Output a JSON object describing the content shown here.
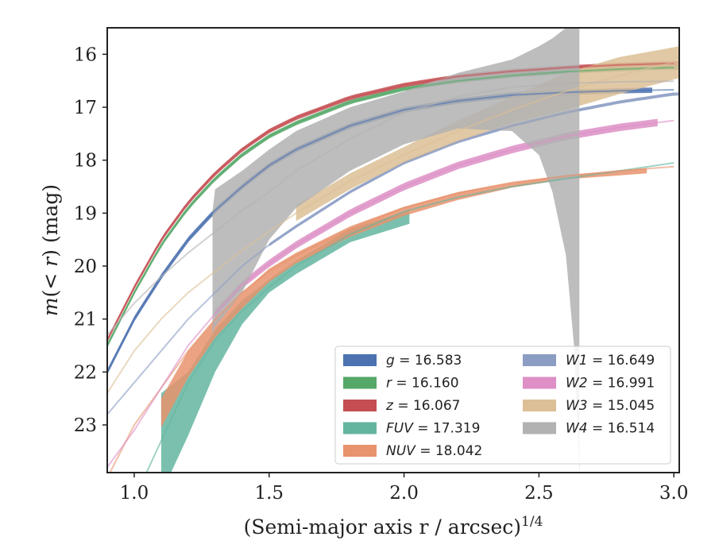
{
  "chart_data": {
    "type": "line",
    "xlabel": "(Semi-major axis r / arcsec)",
    "xlabel_sup": "1/4",
    "ylabel_parts": [
      "m",
      "(< ",
      "r",
      ") (mag)"
    ],
    "xlim": [
      0.9,
      3.02
    ],
    "ylim": [
      23.9,
      15.5
    ],
    "y_inverted": true,
    "xticks": [
      1.0,
      1.5,
      2.0,
      2.5,
      3.0
    ],
    "xtick_labels": [
      "1.0",
      "1.5",
      "2.0",
      "2.5",
      "3.0"
    ],
    "yticks": [
      16,
      17,
      18,
      19,
      20,
      21,
      22,
      23
    ],
    "ytick_labels": [
      "16",
      "17",
      "18",
      "19",
      "20",
      "21",
      "22",
      "23"
    ],
    "grid": false,
    "legend_position": "lower-right",
    "legend_columns": 2,
    "series": [
      {
        "name": "g",
        "legend_value": "16.583",
        "color": "#4c72b0",
        "x": [
          0.9,
          1.0,
          1.1,
          1.2,
          1.3,
          1.4,
          1.5,
          1.6,
          1.8,
          2.0,
          2.2,
          2.4,
          2.6,
          2.8,
          3.0
        ],
        "y": [
          22.0,
          21.0,
          20.2,
          19.5,
          18.95,
          18.5,
          18.1,
          17.8,
          17.35,
          17.05,
          16.88,
          16.77,
          16.72,
          16.69,
          16.67
        ],
        "band_x": [
          0.9,
          2.92
        ],
        "lower": 0.05,
        "upper": 0.05
      },
      {
        "name": "r",
        "legend_value": "16.160",
        "color": "#55a868",
        "x": [
          0.9,
          1.0,
          1.1,
          1.2,
          1.3,
          1.4,
          1.5,
          1.6,
          1.8,
          2.0,
          2.2,
          2.4,
          2.6,
          2.8,
          3.0
        ],
        "y": [
          21.5,
          20.5,
          19.6,
          18.9,
          18.35,
          17.9,
          17.55,
          17.3,
          16.9,
          16.65,
          16.5,
          16.4,
          16.33,
          16.28,
          16.25
        ],
        "band_x": [
          0.9,
          3.02
        ],
        "lower": 0.04,
        "upper": 0.04
      },
      {
        "name": "z",
        "legend_value": "16.067",
        "color": "#c44e52",
        "x": [
          0.9,
          1.0,
          1.1,
          1.2,
          1.3,
          1.4,
          1.5,
          1.6,
          1.8,
          2.0,
          2.2,
          2.4,
          2.6,
          2.8,
          3.0
        ],
        "y": [
          21.4,
          20.4,
          19.5,
          18.8,
          18.25,
          17.8,
          17.45,
          17.2,
          16.82,
          16.58,
          16.42,
          16.32,
          16.25,
          16.2,
          16.17
        ],
        "band_x": [
          0.9,
          3.02
        ],
        "lower": 0.04,
        "upper": 0.04
      },
      {
        "name": "FUV",
        "legend_value": "17.319",
        "color": "#64b5a0",
        "x": [
          0.9,
          1.0,
          1.1,
          1.2,
          1.3,
          1.4,
          1.5,
          1.6,
          1.8,
          2.0,
          2.2,
          2.4,
          2.6,
          2.8,
          3.0
        ],
        "y": [
          25.5,
          24.4,
          23.3,
          22.2,
          21.4,
          20.85,
          20.4,
          20.0,
          19.4,
          18.97,
          18.7,
          18.5,
          18.35,
          18.2,
          18.05
        ],
        "band_x": [
          1.1,
          2.02
        ],
        "band_xs": [
          1.1,
          1.2,
          1.3,
          1.4,
          1.5,
          1.6,
          1.8,
          2.02
        ],
        "band_upper": [
          22.4,
          22.0,
          21.2,
          20.65,
          20.25,
          19.9,
          19.3,
          18.95
        ],
        "band_lower": [
          24.3,
          23.2,
          22.0,
          21.1,
          20.5,
          20.15,
          19.55,
          19.2
        ]
      },
      {
        "name": "NUV",
        "legend_value": "18.042",
        "color": "#e8936d",
        "x": [
          0.9,
          1.0,
          1.1,
          1.2,
          1.3,
          1.4,
          1.5,
          1.6,
          1.8,
          2.0,
          2.2,
          2.4,
          2.6,
          2.8,
          3.0
        ],
        "y": [
          24.0,
          23.0,
          22.3,
          21.6,
          21.0,
          20.5,
          20.1,
          19.8,
          19.3,
          18.9,
          18.62,
          18.42,
          18.3,
          18.2,
          18.12
        ],
        "band_x": [
          1.1,
          2.9
        ],
        "band_xs": [
          1.1,
          1.2,
          1.3,
          1.4,
          1.5,
          1.6,
          1.8,
          2.0,
          2.2,
          2.4,
          2.6,
          2.9
        ],
        "band_upper": [
          22.5,
          21.6,
          21.0,
          20.5,
          20.05,
          19.75,
          19.25,
          18.88,
          18.6,
          18.42,
          18.28,
          18.15
        ],
        "band_lower": [
          23.05,
          22.1,
          21.35,
          20.8,
          20.3,
          19.95,
          19.45,
          19.05,
          18.75,
          18.52,
          18.36,
          18.25
        ]
      },
      {
        "name": "W1",
        "legend_value": "16.649",
        "color": "#8c9dc4",
        "x": [
          0.9,
          1.0,
          1.1,
          1.2,
          1.3,
          1.4,
          1.5,
          1.6,
          1.8,
          2.0,
          2.2,
          2.4,
          2.6,
          2.8,
          3.0
        ],
        "y": [
          22.8,
          22.2,
          21.6,
          21.0,
          20.5,
          20.0,
          19.6,
          19.25,
          18.6,
          18.05,
          17.65,
          17.35,
          17.1,
          16.9,
          16.75
        ],
        "band_x": [
          1.5,
          3.02
        ],
        "lower": 0.03,
        "upper": 0.03
      },
      {
        "name": "W2",
        "legend_value": "16.991",
        "color": "#dd8fc6",
        "x": [
          0.9,
          1.0,
          1.1,
          1.2,
          1.3,
          1.4,
          1.5,
          1.6,
          1.8,
          2.0,
          2.2,
          2.4,
          2.6,
          2.8,
          3.0
        ],
        "y": [
          23.8,
          23.1,
          22.3,
          21.5,
          20.9,
          20.35,
          19.95,
          19.6,
          19.0,
          18.5,
          18.1,
          17.8,
          17.55,
          17.38,
          17.25
        ],
        "band_x": [
          1.3,
          2.94
        ],
        "lower": 0.07,
        "upper": 0.07
      },
      {
        "name": "W3",
        "legend_value": "15.045",
        "color": "#dcbf96",
        "x": [
          0.9,
          1.0,
          1.1,
          1.2,
          1.3,
          1.4,
          1.5,
          1.6,
          1.8,
          2.0,
          2.2,
          2.4,
          2.6,
          2.8,
          3.0
        ],
        "y": [
          22.4,
          21.6,
          21.0,
          20.5,
          20.1,
          19.7,
          19.35,
          19.0,
          18.4,
          17.9,
          17.45,
          17.05,
          16.7,
          16.4,
          16.15
        ],
        "band_x": [
          1.6,
          3.02
        ],
        "band_xs": [
          1.6,
          1.8,
          2.0,
          2.2,
          2.4,
          2.6,
          2.8,
          3.02
        ],
        "band_upper": [
          18.85,
          18.25,
          17.75,
          17.25,
          16.8,
          16.35,
          16.05,
          15.85
        ],
        "band_lower": [
          19.15,
          18.55,
          18.05,
          17.65,
          17.3,
          17.05,
          16.75,
          16.45
        ]
      },
      {
        "name": "W4",
        "legend_value": "16.514",
        "color": "#b2b2b2",
        "x": [
          0.9,
          1.0,
          1.1,
          1.2,
          1.3,
          1.4,
          1.5,
          1.6,
          1.8,
          2.0,
          2.2,
          2.4,
          2.6,
          2.8,
          3.0
        ],
        "y": [
          21.3,
          20.7,
          20.2,
          19.75,
          19.35,
          18.95,
          18.6,
          18.2,
          17.6,
          17.1,
          16.8,
          16.62,
          16.55,
          16.52,
          16.51
        ],
        "band_x": [
          1.29,
          2.65
        ],
        "band_xs": [
          1.29,
          1.3,
          1.4,
          1.5,
          1.6,
          1.8,
          2.0,
          2.2,
          2.4,
          2.5,
          2.55,
          2.6,
          2.63,
          2.65
        ],
        "band_upper": [
          18.95,
          18.55,
          18.2,
          17.8,
          17.45,
          17.0,
          16.7,
          16.35,
          16.1,
          15.85,
          15.7,
          15.5,
          15.4,
          15.3
        ],
        "band_lower": [
          21.3,
          21.15,
          20.5,
          19.5,
          18.9,
          18.2,
          17.7,
          17.4,
          17.45,
          17.9,
          18.6,
          19.8,
          21.5,
          23.9
        ]
      }
    ]
  }
}
